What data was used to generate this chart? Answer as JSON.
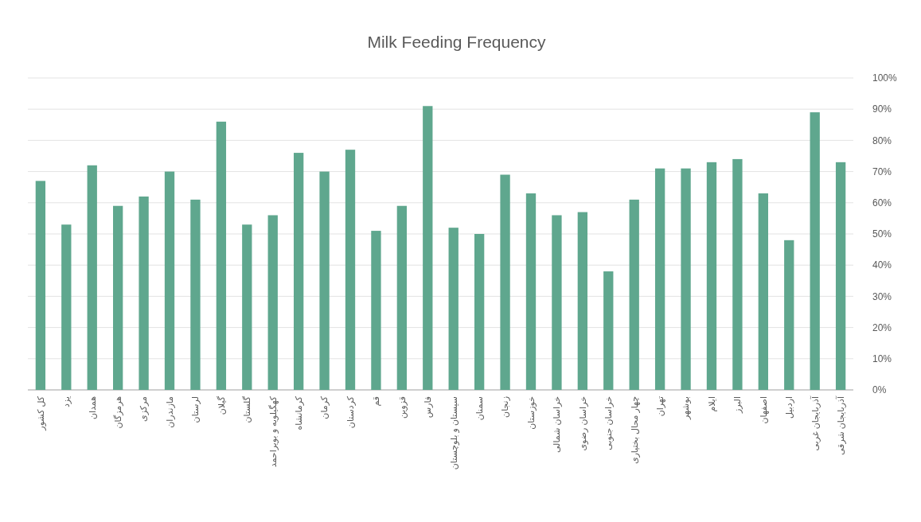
{
  "chart_data": {
    "type": "bar",
    "title": "Milk Feeding Frequency",
    "categories": [
      "کل کشور",
      "یزد",
      "همدان",
      "هرمزگان",
      "مرکزی",
      "مازندران",
      "لرستان",
      "گیلان",
      "گلستان",
      "کهگیلویه و بویراحمد",
      "کرمانشاه",
      "کرمان",
      "کردستان",
      "قم",
      "قزوین",
      "فارس",
      "سیستان و بلوچستان",
      "سمنان",
      "زنجان",
      "خوزستان",
      "خراسان شمالی",
      "خراسان رضوی",
      "خراسان جنوبی",
      "چهار محال بختیاری",
      "تهران",
      "بوشهر",
      "ایلام",
      "البرز",
      "اصفهان",
      "اردبیل",
      "آذربایجان غربی",
      "آذربایجان شرقی"
    ],
    "values": [
      67,
      53,
      72,
      59,
      62,
      70,
      61,
      86,
      53,
      56,
      76,
      70,
      77,
      51,
      59,
      91,
      52,
      50,
      69,
      63,
      56,
      57,
      38,
      61,
      71,
      71,
      73,
      74,
      63,
      48,
      89,
      73
    ],
    "color": "#5fa78e",
    "ylim": [
      0,
      100
    ],
    "yticks": [
      {
        "value": 0,
        "label": "0%"
      },
      {
        "value": 10,
        "label": "10%"
      },
      {
        "value": 20,
        "label": "20%"
      },
      {
        "value": 30,
        "label": "30%"
      },
      {
        "value": 40,
        "label": "40%"
      },
      {
        "value": 50,
        "label": "50%"
      },
      {
        "value": 60,
        "label": "60%"
      },
      {
        "value": 70,
        "label": "70%"
      },
      {
        "value": 80,
        "label": "80%"
      },
      {
        "value": 90,
        "label": "90%"
      },
      {
        "value": 100,
        "label": "100%"
      }
    ],
    "grid": true
  }
}
